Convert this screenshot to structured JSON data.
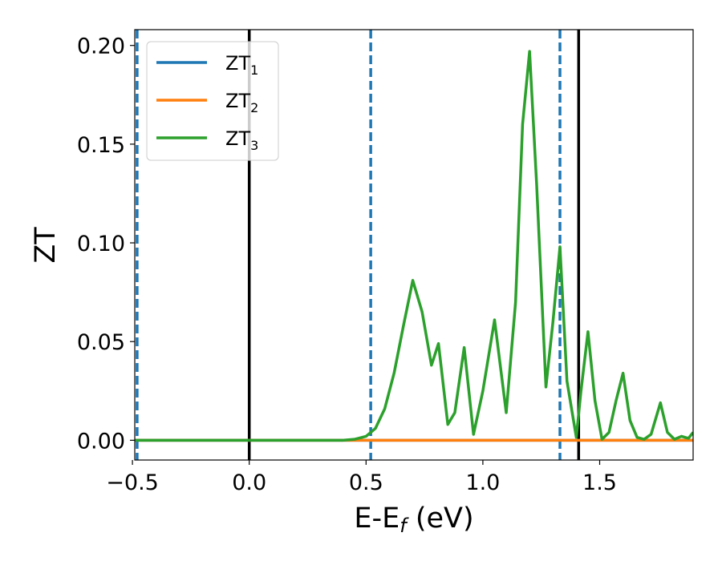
{
  "chart_data": {
    "type": "line",
    "xlabel": {
      "main": "E-E",
      "sub": "f",
      "tail": " (eV)"
    },
    "ylabel": "ZT",
    "xlim": [
      -0.49,
      1.9
    ],
    "ylim": [
      -0.01,
      0.208
    ],
    "xticks": [
      -0.5,
      0.0,
      0.5,
      1.0,
      1.5
    ],
    "xtick_labels": [
      "−0.5",
      "0.0",
      "0.5",
      "1.0",
      "1.5"
    ],
    "yticks": [
      0.0,
      0.05,
      0.1,
      0.15,
      0.2
    ],
    "ytick_labels": [
      "0.00",
      "0.05",
      "0.10",
      "0.15",
      "0.20"
    ],
    "grid": false,
    "legend_position": "top-left",
    "vlines": [
      {
        "x": -0.48,
        "style": "dashed",
        "color": "#1f77b4"
      },
      {
        "x": 0.0,
        "style": "solid",
        "color": "#000000"
      },
      {
        "x": 0.52,
        "style": "dashed",
        "color": "#1f77b4"
      },
      {
        "x": 1.33,
        "style": "dashed",
        "color": "#1f77b4"
      },
      {
        "x": 1.41,
        "style": "solid",
        "color": "#000000"
      }
    ],
    "series": [
      {
        "name": "ZT",
        "subscript": "1",
        "color": "#1f77b4",
        "x": [
          -0.49,
          0.0,
          0.5,
          1.0,
          1.5,
          1.9
        ],
        "y": [
          0.0,
          0.0,
          0.0,
          0.0,
          0.0,
          0.0
        ]
      },
      {
        "name": "ZT",
        "subscript": "2",
        "color": "#ff7f0e",
        "x": [
          -0.49,
          0.0,
          0.5,
          1.0,
          1.5,
          1.9
        ],
        "y": [
          0.0,
          0.0,
          0.0,
          0.0,
          0.0,
          0.0
        ]
      },
      {
        "name": "ZT",
        "subscript": "3",
        "color": "#2ca02c",
        "x": [
          -0.49,
          0.0,
          0.4,
          0.45,
          0.5,
          0.54,
          0.58,
          0.62,
          0.66,
          0.7,
          0.74,
          0.78,
          0.81,
          0.85,
          0.88,
          0.92,
          0.96,
          1.0,
          1.05,
          1.1,
          1.14,
          1.17,
          1.2,
          1.23,
          1.27,
          1.3,
          1.33,
          1.36,
          1.4,
          1.42,
          1.45,
          1.48,
          1.51,
          1.54,
          1.57,
          1.6,
          1.63,
          1.66,
          1.69,
          1.72,
          1.76,
          1.79,
          1.82,
          1.85,
          1.88,
          1.9
        ],
        "y": [
          0.0,
          0.0,
          0.0,
          0.0005,
          0.002,
          0.006,
          0.016,
          0.034,
          0.058,
          0.081,
          0.065,
          0.038,
          0.049,
          0.008,
          0.014,
          0.047,
          0.003,
          0.025,
          0.061,
          0.014,
          0.07,
          0.16,
          0.197,
          0.13,
          0.027,
          0.06,
          0.098,
          0.03,
          0.0015,
          0.025,
          0.055,
          0.02,
          0.0005,
          0.004,
          0.02,
          0.034,
          0.01,
          0.0015,
          0.0005,
          0.003,
          0.019,
          0.004,
          0.0005,
          0.002,
          0.001,
          0.004
        ]
      }
    ]
  }
}
